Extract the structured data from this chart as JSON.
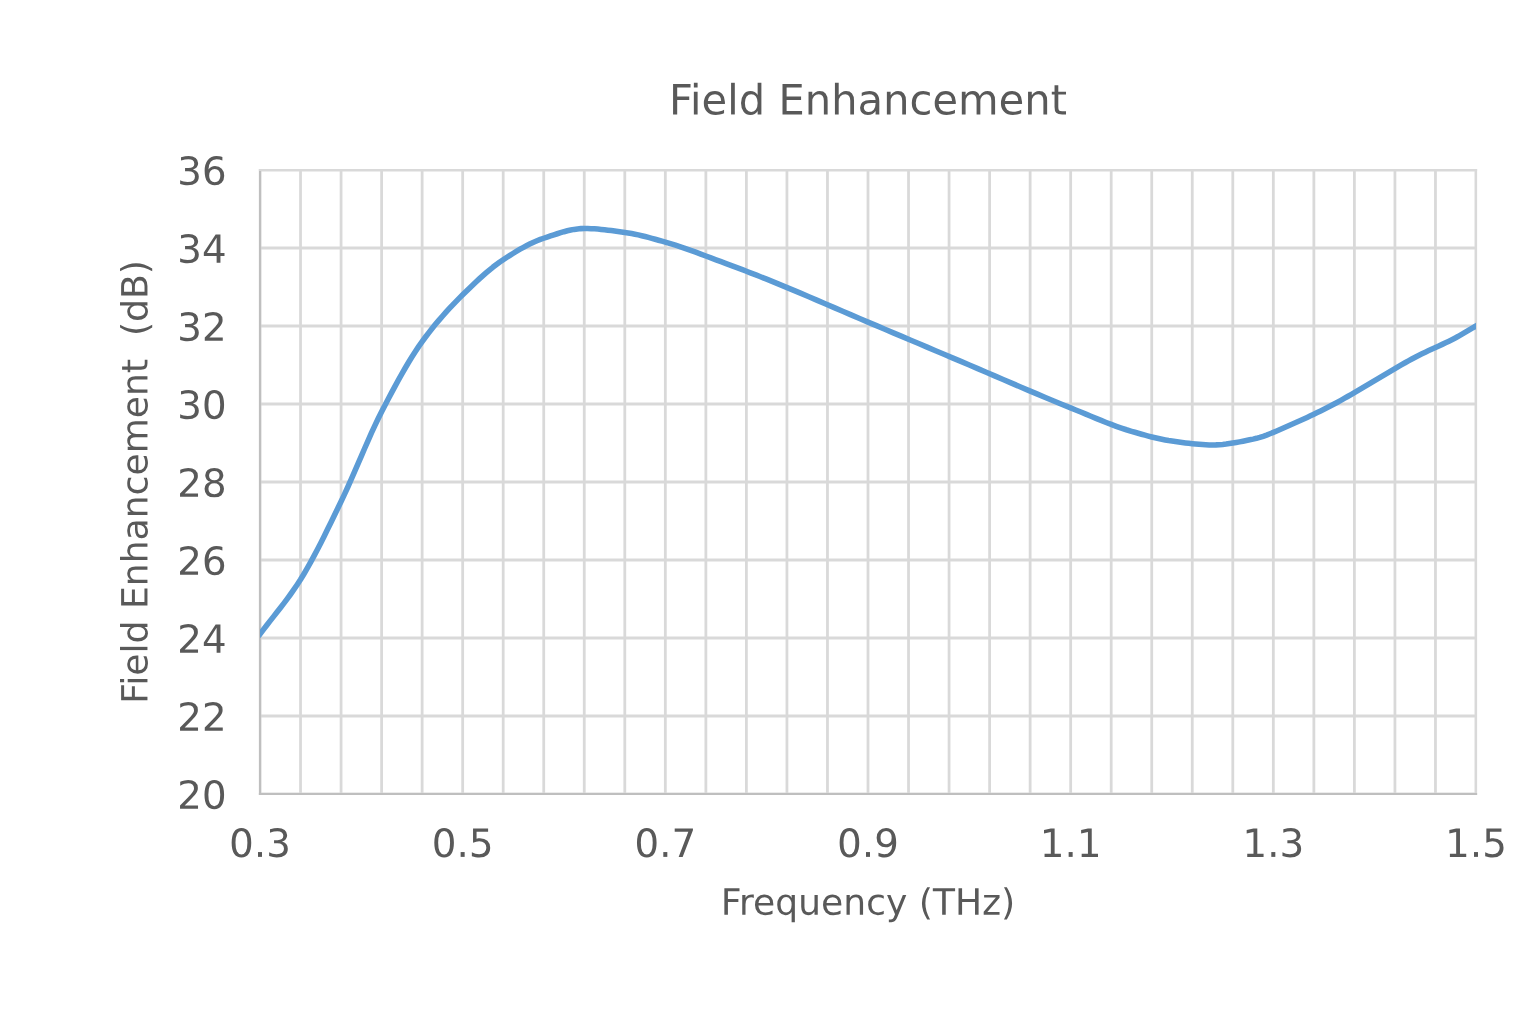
{
  "chart_data": {
    "type": "line",
    "title": "Field Enhancement",
    "xlabel": "Frequency (THz)",
    "ylabel": "Field Enhancement  (dB)",
    "x": [
      0.3,
      0.34,
      0.38,
      0.42,
      0.46,
      0.5,
      0.54,
      0.58,
      0.62,
      0.66,
      0.7,
      0.76,
      0.8,
      0.9,
      1.0,
      1.1,
      1.16,
      1.2,
      1.24,
      1.28,
      1.32,
      1.36,
      1.4,
      1.44,
      1.48,
      1.5
    ],
    "series": [
      {
        "color": "#5b9bd5",
        "values": [
          24.1,
          25.5,
          27.5,
          29.8,
          31.6,
          32.8,
          33.7,
          34.25,
          34.5,
          34.4,
          34.15,
          33.6,
          33.2,
          32.1,
          31.0,
          29.9,
          29.3,
          29.05,
          28.95,
          29.1,
          29.5,
          30.0,
          30.6,
          31.2,
          31.7,
          32.0
        ]
      }
    ],
    "xlim": [
      0.3,
      1.5
    ],
    "ylim": [
      20,
      36
    ],
    "xticks": [
      0.3,
      {
        "value": 0.34,
        "label": null
      },
      {
        "value": 0.38,
        "label": null
      },
      {
        "value": 0.42,
        "label": null
      },
      {
        "value": 0.46,
        "label": null
      },
      0.5,
      {
        "value": 0.54,
        "label": null
      },
      {
        "value": 0.58,
        "label": null
      },
      {
        "value": 0.62,
        "label": null
      },
      {
        "value": 0.66,
        "label": null
      },
      0.7,
      {
        "value": 0.74,
        "label": null
      },
      {
        "value": 0.78,
        "label": null
      },
      {
        "value": 0.82,
        "label": null
      },
      {
        "value": 0.86,
        "label": null
      },
      0.9,
      {
        "value": 0.94,
        "label": null
      },
      {
        "value": 0.98,
        "label": null
      },
      {
        "value": 1.02,
        "label": null
      },
      {
        "value": 1.06,
        "label": null
      },
      1.1,
      {
        "value": 1.14,
        "label": null
      },
      {
        "value": 1.18,
        "label": null
      },
      {
        "value": 1.22,
        "label": null
      },
      {
        "value": 1.26,
        "label": null
      },
      1.3,
      {
        "value": 1.34,
        "label": null
      },
      {
        "value": 1.38,
        "label": null
      },
      {
        "value": 1.42,
        "label": null
      },
      {
        "value": 1.46,
        "label": null
      },
      1.5
    ],
    "yticks": [
      20,
      22,
      24,
      26,
      28,
      30,
      32,
      34,
      36
    ],
    "grid": true,
    "marker": "none",
    "line_style": "solid"
  }
}
